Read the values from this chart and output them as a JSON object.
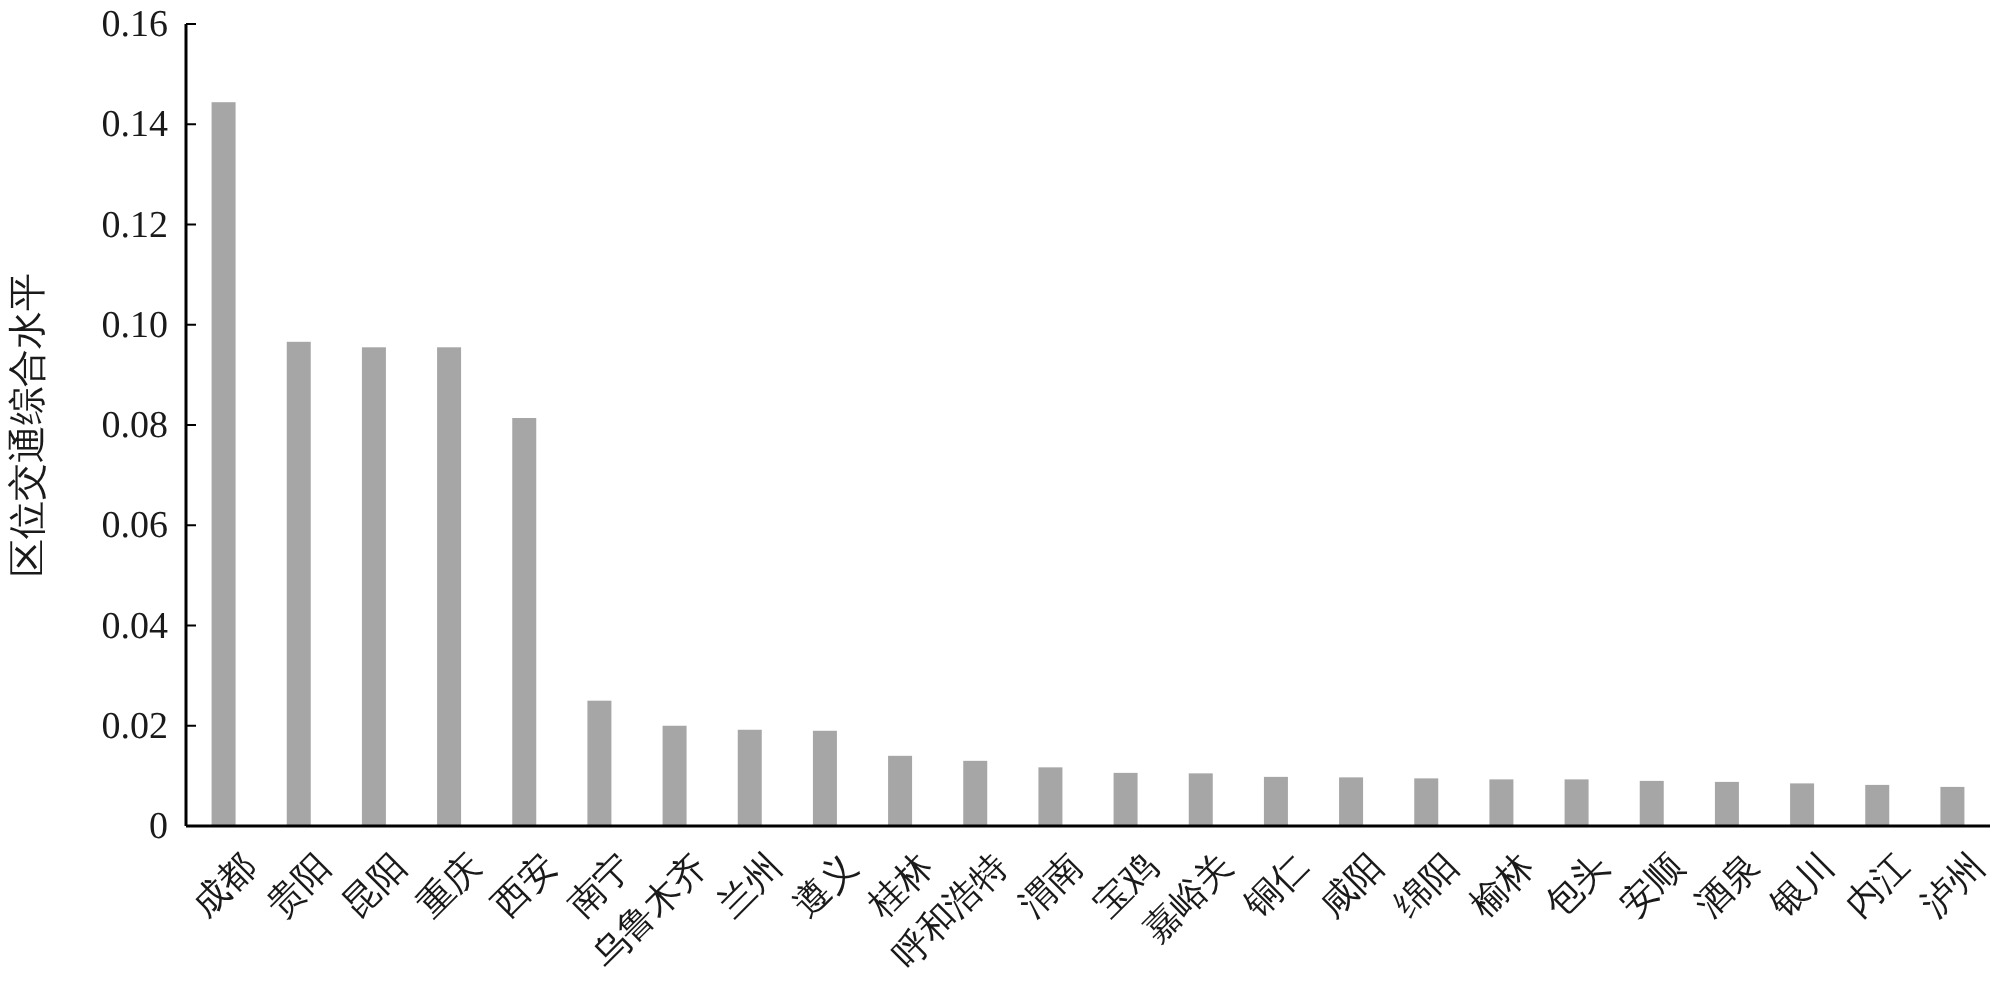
{
  "chart_data": {
    "type": "bar",
    "ylabel": "区位交通综合水平",
    "categories": [
      "成都",
      "贵阳",
      "昆阳",
      "重庆",
      "西安",
      "南宁",
      "乌鲁木齐",
      "兰州",
      "遵义",
      "桂林",
      "呼和浩特",
      "渭南",
      "宝鸡",
      "嘉峪关",
      "铜仁",
      "咸阳",
      "绵阳",
      "榆林",
      "包头",
      "安顺",
      "酒泉",
      "银川",
      "内江",
      "泸州"
    ],
    "values": [
      0.1444,
      0.0966,
      0.0955,
      0.0955,
      0.0814,
      0.025,
      0.02,
      0.0192,
      0.019,
      0.014,
      0.013,
      0.0117,
      0.0106,
      0.0105,
      0.0098,
      0.0097,
      0.0095,
      0.0093,
      0.0093,
      0.009,
      0.0088,
      0.0085,
      0.0082,
      0.0078
    ],
    "color": "#a6a6a6",
    "ylim": [
      0,
      0.16
    ],
    "yticks": [
      {
        "value": 0,
        "label": "0"
      },
      {
        "value": 0.02,
        "label": "0.02"
      },
      {
        "value": 0.04,
        "label": "0.04"
      },
      {
        "value": 0.06,
        "label": "0.06"
      },
      {
        "value": 0.08,
        "label": "0.08"
      },
      {
        "value": 0.1,
        "label": "0.10"
      },
      {
        "value": 0.12,
        "label": "0.12"
      },
      {
        "value": 0.14,
        "label": "0.14"
      },
      {
        "value": 0.16,
        "label": "0.16"
      }
    ],
    "grid": false
  }
}
